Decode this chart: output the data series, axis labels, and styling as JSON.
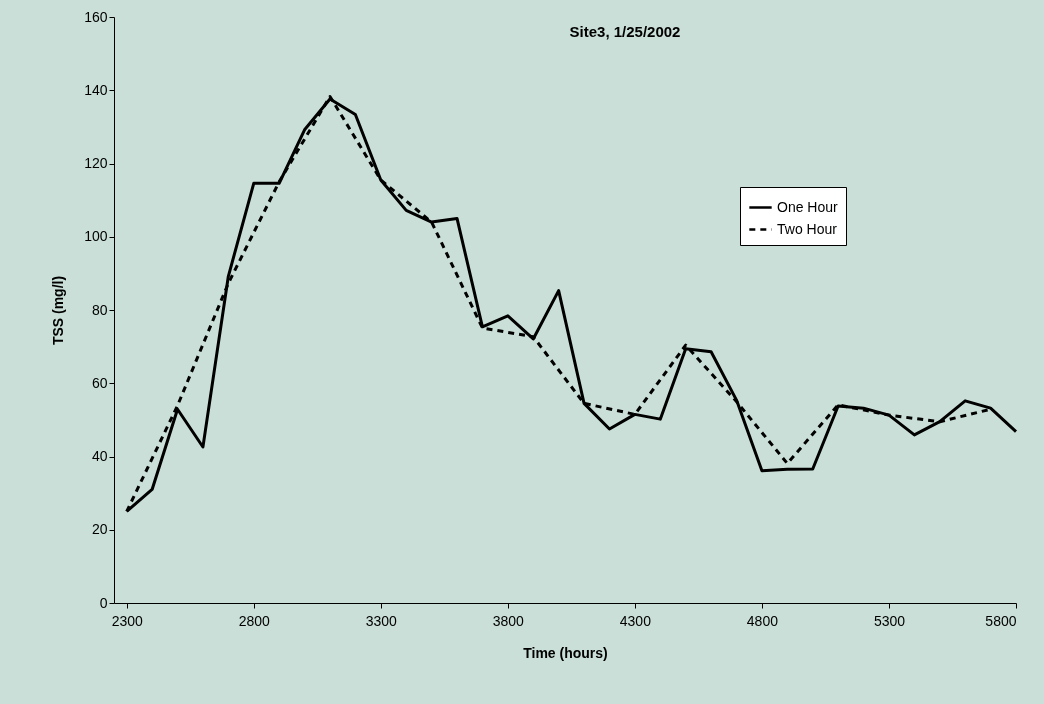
{
  "chart_data": {
    "type": "line",
    "title": "Site3, 1/25/2002",
    "xlabel": "Time (hours)",
    "ylabel": "TSS (mg/l)",
    "xlim": [
      2250,
      5800
    ],
    "xticks": [
      2300,
      2800,
      3300,
      3800,
      4300,
      4800,
      5300,
      5800
    ],
    "ylim": [
      0,
      160
    ],
    "yticks": [
      0,
      20,
      40,
      60,
      80,
      100,
      120,
      140,
      160
    ],
    "grid": false,
    "legend": "top right",
    "marker": "none",
    "series": [
      {
        "name": "One Hour",
        "color": "#000000",
        "line_style": "solid",
        "x": [
          2300,
          2400,
          2500,
          2600,
          2700,
          2800,
          2900,
          3000,
          3100,
          3200,
          3300,
          3400,
          3500,
          3600,
          3700,
          3800,
          3900,
          4000,
          4100,
          4200,
          4300,
          4400,
          4500,
          4600,
          4700,
          4800,
          4900,
          5000,
          5100,
          5200,
          5300,
          5400,
          5500,
          5600,
          5700,
          5800
        ],
        "values": [
          25.0,
          31.0,
          52.9,
          42.6,
          89.2,
          114.6,
          114.6,
          129.2,
          137.6,
          133.4,
          115.5,
          107.2,
          104.0,
          105.0,
          75.4,
          78.4,
          72.1,
          85.3,
          54.5,
          47.5,
          51.5,
          50.2,
          69.4,
          68.6,
          55.4,
          36.1,
          36.5,
          36.6,
          53.8,
          53.2,
          51.3,
          45.9,
          49.5,
          55.2,
          53.2,
          46.8
        ]
      },
      {
        "name": "Two Hour",
        "color": "#000000",
        "line_style": "dashed",
        "x": [
          2300,
          2500,
          2700,
          2900,
          3100,
          3300,
          3500,
          3700,
          3900,
          4100,
          4300,
          4500,
          4700,
          4900,
          5100,
          5300,
          5500,
          5700
        ],
        "values": [
          25.0,
          53.9,
          87.3,
          115.0,
          138.3,
          115.5,
          104.0,
          75.1,
          72.7,
          54.5,
          51.5,
          70.4,
          55.0,
          38.1,
          54.1,
          51.3,
          49.5,
          52.9
        ]
      }
    ]
  }
}
